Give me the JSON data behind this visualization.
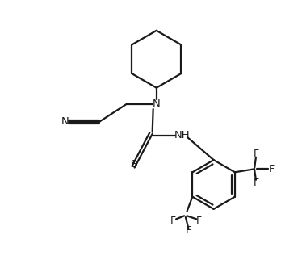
{
  "background_color": "#ffffff",
  "line_color": "#1a1a1a",
  "line_width": 1.6,
  "font_size": 9.5,
  "figsize": [
    3.74,
    3.22
  ],
  "dpi": 100,
  "xlim": [
    0.0,
    10.0
  ],
  "ylim": [
    0.0,
    9.5
  ]
}
